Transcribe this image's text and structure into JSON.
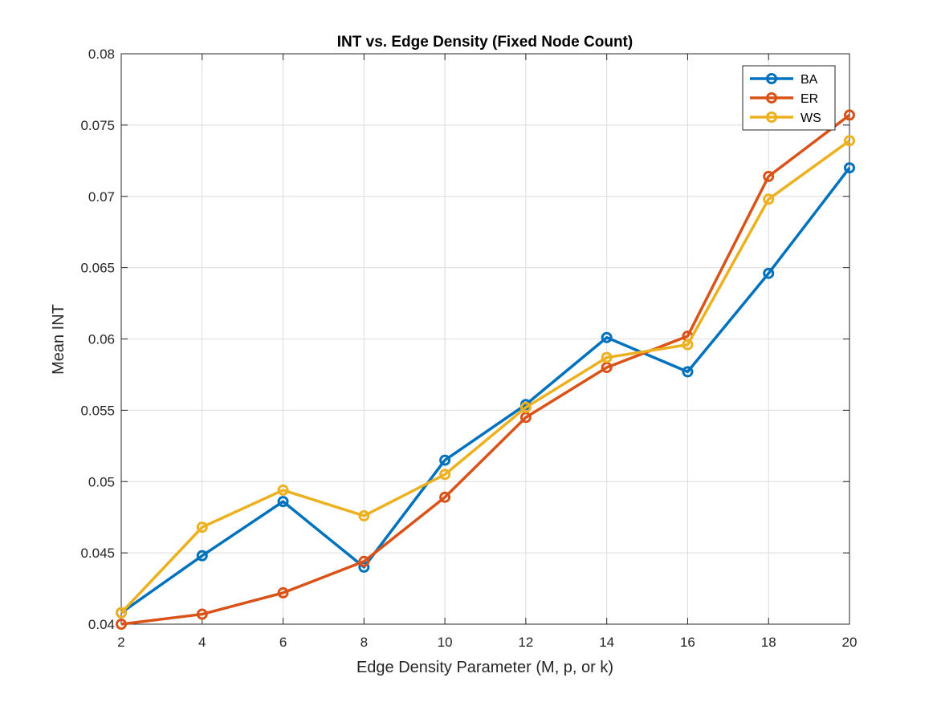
{
  "chart_data": {
    "type": "line",
    "title": "INT vs. Edge Density (Fixed Node Count)",
    "xlabel": "Edge Density Parameter (M, p, or k)",
    "ylabel": "Mean INT",
    "x": [
      2,
      4,
      6,
      8,
      10,
      12,
      14,
      16,
      18,
      20
    ],
    "xlim": [
      2,
      20
    ],
    "ylim": [
      0.04,
      0.08
    ],
    "xticks": [
      2,
      4,
      6,
      8,
      10,
      12,
      14,
      16,
      18,
      20
    ],
    "xtick_labels": [
      "2",
      "4",
      "6",
      "8",
      "10",
      "12",
      "14",
      "16",
      "18",
      "20"
    ],
    "yticks": [
      0.04,
      0.045,
      0.05,
      0.055,
      0.06,
      0.065,
      0.07,
      0.075,
      0.08
    ],
    "ytick_labels": [
      "0.04",
      "0.045",
      "0.05",
      "0.055",
      "0.06",
      "0.065",
      "0.07",
      "0.075",
      "0.08"
    ],
    "grid": true,
    "legend_position": "top-right",
    "marker": "circle",
    "series": [
      {
        "name": "BA",
        "color": "#0072BD",
        "values": [
          0.0408,
          0.0448,
          0.0486,
          0.044,
          0.0515,
          0.0554,
          0.0601,
          0.0577,
          0.0646,
          0.072
        ]
      },
      {
        "name": "ER",
        "color": "#D95319",
        "values": [
          0.04,
          0.0407,
          0.0422,
          0.0444,
          0.0489,
          0.0545,
          0.058,
          0.0602,
          0.0714,
          0.0757
        ]
      },
      {
        "name": "WS",
        "color": "#EDB120",
        "values": [
          0.0408,
          0.0468,
          0.0494,
          0.0476,
          0.0505,
          0.0552,
          0.0587,
          0.0596,
          0.0698,
          0.0739
        ]
      }
    ]
  }
}
